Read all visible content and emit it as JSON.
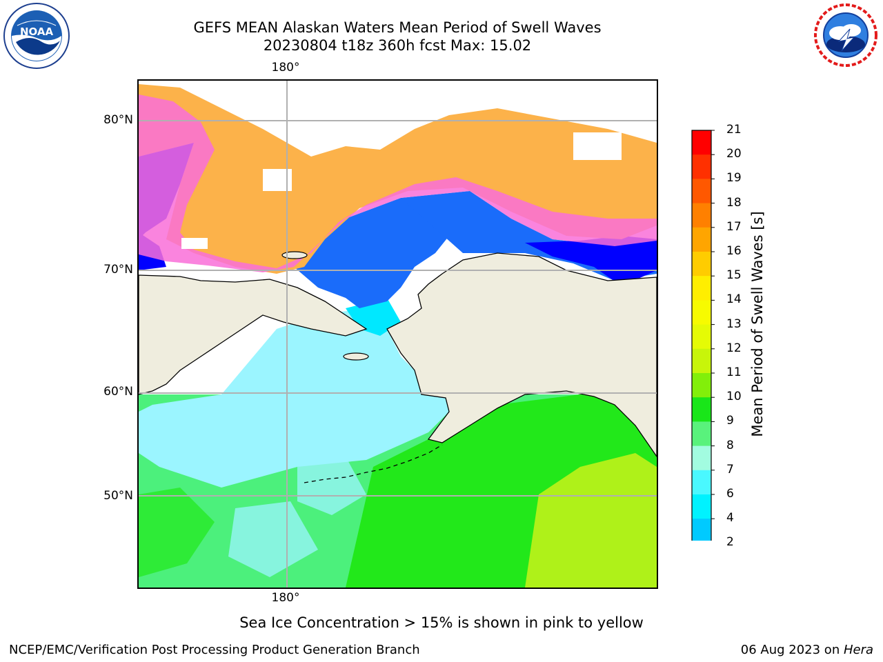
{
  "header": {
    "title_line1": "GEFS MEAN Alaskan Waters Mean Period of Swell Waves",
    "title_line2": "20230804 t18z 360h fcst   Max: 15.02"
  },
  "logos": {
    "left": "NOAA",
    "right": "NATIONAL WEATHER SERVICE"
  },
  "map": {
    "lat_labels": [
      "80°N",
      "70°N",
      "60°N",
      "50°N"
    ],
    "lon_label_top": "180°",
    "lon_label_bottom": "180°",
    "colors": {
      "land": "#efedde",
      "ice_pink": "#f96fd8",
      "ice_orange": "#fcb24a",
      "blue_dark": "#0000ff",
      "blue_mid": "#1a6cfa",
      "cyan": "#00e8ff",
      "light_cyan": "#9bf5ff",
      "green_light": "#4cf07c",
      "green": "#22e81a",
      "yellow_green": "#c8f21a"
    }
  },
  "colorbar": {
    "label": "Mean Period of Swell Waves [s]",
    "ticks": [
      "21",
      "20",
      "19",
      "18",
      "17",
      "16",
      "15",
      "14",
      "13",
      "12",
      "11",
      "10",
      "9",
      "8",
      "7",
      "6",
      "4",
      "2"
    ],
    "colors": [
      "#ff0000",
      "#ff3000",
      "#ff5800",
      "#ff8000",
      "#ffa500",
      "#ffcc00",
      "#ffee00",
      "#f7fb00",
      "#e5fb05",
      "#c8f50a",
      "#82ef0a",
      "#19e619",
      "#59f27c",
      "#a2fce0",
      "#4af8ff",
      "#00f2ff",
      "#00caff",
      "#0a78ff"
    ],
    "extend_color": "#0000ff"
  },
  "caption": "Sea Ice Concentration > 15% is shown in pink to yellow",
  "footer": {
    "left": "NCEP/EMC/Verification Post Processing Product Generation Branch",
    "date": "06 Aug 2023 on ",
    "machine": "Hera"
  }
}
